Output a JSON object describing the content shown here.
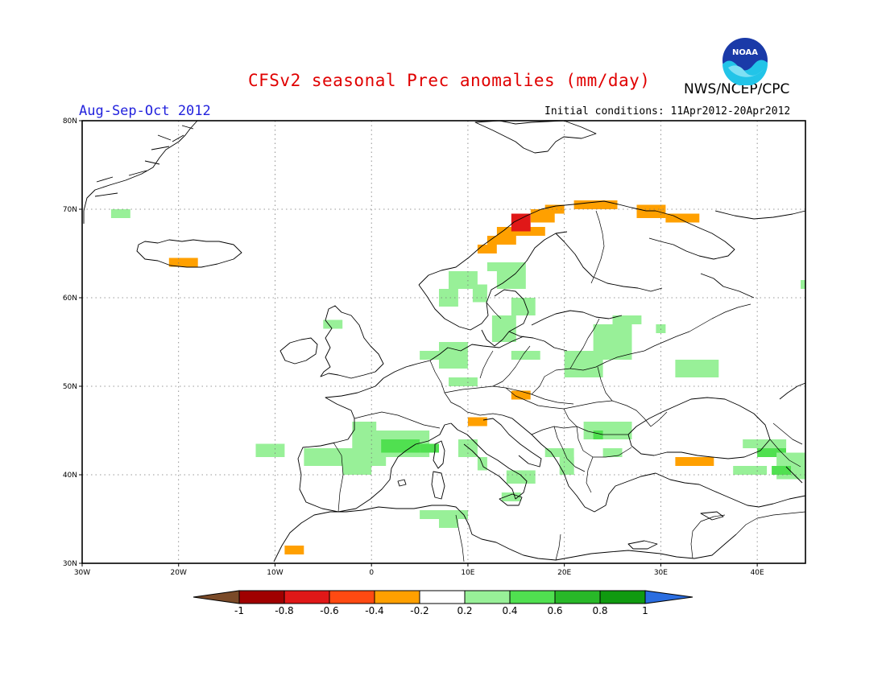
{
  "header": {
    "title": "CFSv2 seasonal Prec anomalies (mm/day)",
    "agency": "NWS/NCEP/CPC",
    "logo_text": "NOAA",
    "season": "Aug-Sep-Oct 2012",
    "initial_conditions": "Initial conditions: 11Apr2012-20Apr2012"
  },
  "map": {
    "region": "Europe",
    "lon_range": [
      -30,
      45
    ],
    "lat_range": [
      30,
      80
    ],
    "lon_ticks": [
      {
        "value": -30,
        "label": "30W"
      },
      {
        "value": -20,
        "label": "20W"
      },
      {
        "value": -10,
        "label": "10W"
      },
      {
        "value": 0,
        "label": "0"
      },
      {
        "value": 10,
        "label": "10E"
      },
      {
        "value": 20,
        "label": "20E"
      },
      {
        "value": 30,
        "label": "30E"
      },
      {
        "value": 40,
        "label": "40E"
      }
    ],
    "lat_ticks": [
      {
        "value": 30,
        "label": "30N"
      },
      {
        "value": 40,
        "label": "40N"
      },
      {
        "value": 50,
        "label": "50N"
      },
      {
        "value": 60,
        "label": "60N"
      },
      {
        "value": 70,
        "label": "70N"
      },
      {
        "value": 80,
        "label": "80N"
      }
    ],
    "gridlines": "dotted",
    "anomaly_cells": [
      {
        "lon": [
          -27,
          -25
        ],
        "lat": [
          69,
          70
        ],
        "cls": "g1"
      },
      {
        "lon": [
          -21,
          -18
        ],
        "lat": [
          63.5,
          64.5
        ],
        "cls": "o1"
      },
      {
        "lon": [
          -5,
          -3
        ],
        "lat": [
          56.5,
          57.5
        ],
        "cls": "g1"
      },
      {
        "lon": [
          -12,
          -9
        ],
        "lat": [
          42,
          43.5
        ],
        "cls": "g1"
      },
      {
        "lon": [
          -7,
          1.5
        ],
        "lat": [
          41,
          43
        ],
        "cls": "g1"
      },
      {
        "lon": [
          -3,
          0
        ],
        "lat": [
          40,
          41
        ],
        "cls": "g1"
      },
      {
        "lon": [
          -2,
          6
        ],
        "lat": [
          42,
          45
        ],
        "cls": "g1"
      },
      {
        "lon": [
          1,
          5
        ],
        "lat": [
          42.5,
          44
        ],
        "cls": "g2"
      },
      {
        "lon": [
          -2,
          0.5
        ],
        "lat": [
          45,
          46
        ],
        "cls": "g1"
      },
      {
        "lon": [
          5,
          7
        ],
        "lat": [
          42.5,
          43.5
        ],
        "cls": "g2"
      },
      {
        "lon": [
          9,
          11
        ],
        "lat": [
          42,
          44
        ],
        "cls": "g1"
      },
      {
        "lon": [
          11,
          12
        ],
        "lat": [
          40.5,
          42
        ],
        "cls": "g1"
      },
      {
        "lon": [
          -9,
          -7
        ],
        "lat": [
          31,
          32
        ],
        "cls": "o1"
      },
      {
        "lon": [
          5,
          10
        ],
        "lat": [
          35,
          36
        ],
        "cls": "g1"
      },
      {
        "lon": [
          7,
          9
        ],
        "lat": [
          34,
          35
        ],
        "cls": "g1"
      },
      {
        "lon": [
          14,
          17
        ],
        "lat": [
          39,
          40.5
        ],
        "cls": "g1"
      },
      {
        "lon": [
          13.5,
          15.5
        ],
        "lat": [
          37,
          38
        ],
        "cls": "g1"
      },
      {
        "lon": [
          18,
          21
        ],
        "lat": [
          42,
          43
        ],
        "cls": "g1"
      },
      {
        "lon": [
          19.5,
          21
        ],
        "lat": [
          40,
          42
        ],
        "cls": "g1"
      },
      {
        "lon": [
          22,
          27
        ],
        "lat": [
          44,
          46
        ],
        "cls": "g1"
      },
      {
        "lon": [
          23,
          24
        ],
        "lat": [
          44,
          45
        ],
        "cls": "g2"
      },
      {
        "lon": [
          24,
          26
        ],
        "lat": [
          42,
          43
        ],
        "cls": "g1"
      },
      {
        "lon": [
          10,
          12
        ],
        "lat": [
          45.5,
          46.5
        ],
        "cls": "o1"
      },
      {
        "lon": [
          14.5,
          16.5
        ],
        "lat": [
          48.5,
          49.5
        ],
        "cls": "o1"
      },
      {
        "lon": [
          8,
          11
        ],
        "lat": [
          50,
          51
        ],
        "cls": "g1"
      },
      {
        "lon": [
          5,
          8
        ],
        "lat": [
          53,
          54
        ],
        "cls": "g1"
      },
      {
        "lon": [
          7,
          10
        ],
        "lat": [
          52,
          55
        ],
        "cls": "g1"
      },
      {
        "lon": [
          14.5,
          17.5
        ],
        "lat": [
          53,
          54
        ],
        "cls": "g1"
      },
      {
        "lon": [
          20,
          24
        ],
        "lat": [
          51,
          54
        ],
        "cls": "g1"
      },
      {
        "lon": [
          23,
          27
        ],
        "lat": [
          53,
          54
        ],
        "cls": "g1"
      },
      {
        "lon": [
          23,
          27
        ],
        "lat": [
          54,
          57
        ],
        "cls": "g1"
      },
      {
        "lon": [
          25,
          28
        ],
        "lat": [
          57,
          58
        ],
        "cls": "g1"
      },
      {
        "lon": [
          31.5,
          36
        ],
        "lat": [
          51,
          53
        ],
        "cls": "g1"
      },
      {
        "lon": [
          29.5,
          30.5
        ],
        "lat": [
          56,
          57
        ],
        "cls": "g1"
      },
      {
        "lon": [
          12.5,
          15
        ],
        "lat": [
          55,
          58
        ],
        "cls": "g1"
      },
      {
        "lon": [
          14.5,
          17
        ],
        "lat": [
          58,
          60
        ],
        "cls": "g1"
      },
      {
        "lon": [
          13,
          16
        ],
        "lat": [
          61,
          64
        ],
        "cls": "g1"
      },
      {
        "lon": [
          8,
          11
        ],
        "lat": [
          61,
          63
        ],
        "cls": "g1"
      },
      {
        "lon": [
          7,
          9
        ],
        "lat": [
          59,
          61
        ],
        "cls": "g1"
      },
      {
        "lon": [
          10.5,
          12
        ],
        "lat": [
          59.5,
          61.5
        ],
        "cls": "g1"
      },
      {
        "lon": [
          12,
          14
        ],
        "lat": [
          63,
          64
        ],
        "cls": "g1"
      },
      {
        "lon": [
          11,
          13
        ],
        "lat": [
          65,
          66
        ],
        "cls": "o1"
      },
      {
        "lon": [
          12,
          15
        ],
        "lat": [
          66,
          67
        ],
        "cls": "o1"
      },
      {
        "lon": [
          13,
          18
        ],
        "lat": [
          67,
          68
        ],
        "cls": "o1"
      },
      {
        "lon": [
          14.5,
          16.5
        ],
        "lat": [
          67.5,
          69.5
        ],
        "cls": "r1"
      },
      {
        "lon": [
          16.5,
          19
        ],
        "lat": [
          68.5,
          70
        ],
        "cls": "o1"
      },
      {
        "lon": [
          18,
          20
        ],
        "lat": [
          69.5,
          70.5
        ],
        "cls": "o1"
      },
      {
        "lon": [
          21,
          25.5
        ],
        "lat": [
          70,
          71
        ],
        "cls": "o1"
      },
      {
        "lon": [
          27.5,
          30.5
        ],
        "lat": [
          69,
          70.5
        ],
        "cls": "o1"
      },
      {
        "lon": [
          30.5,
          34
        ],
        "lat": [
          68.5,
          69.5
        ],
        "cls": "o1"
      },
      {
        "lon": [
          31.5,
          35.5
        ],
        "lat": [
          41,
          42
        ],
        "cls": "o1"
      },
      {
        "lon": [
          37.5,
          41
        ],
        "lat": [
          40,
          41
        ],
        "cls": "g1"
      },
      {
        "lon": [
          38.5,
          43
        ],
        "lat": [
          43,
          44
        ],
        "cls": "g1"
      },
      {
        "lon": [
          40,
          43
        ],
        "lat": [
          42,
          43
        ],
        "cls": "g2"
      },
      {
        "lon": [
          42,
          45
        ],
        "lat": [
          39.5,
          42.5
        ],
        "cls": "g1"
      },
      {
        "lon": [
          41.5,
          43.5
        ],
        "lat": [
          40,
          41
        ],
        "cls": "g2"
      },
      {
        "lon": [
          44.5,
          45
        ],
        "lat": [
          61,
          62
        ],
        "cls": "g1"
      }
    ]
  },
  "colorbar": {
    "labels": [
      "-1",
      "-0.8",
      "-0.6",
      "-0.4",
      "-0.2",
      "0.2",
      "0.4",
      "0.6",
      "0.8",
      "1"
    ],
    "under_color": "#7a4a28",
    "over_color": "#2a6de0",
    "colors": [
      "#a00000",
      "#e01818",
      "#ff4a12",
      "#ffa000",
      "#ffffff",
      "#98f098",
      "#50e050",
      "#28b828",
      "#109a10"
    ]
  },
  "palette": {
    "o1": "#ffa000",
    "r1": "#e01818",
    "g1": "#98f098",
    "g2": "#50e050"
  }
}
